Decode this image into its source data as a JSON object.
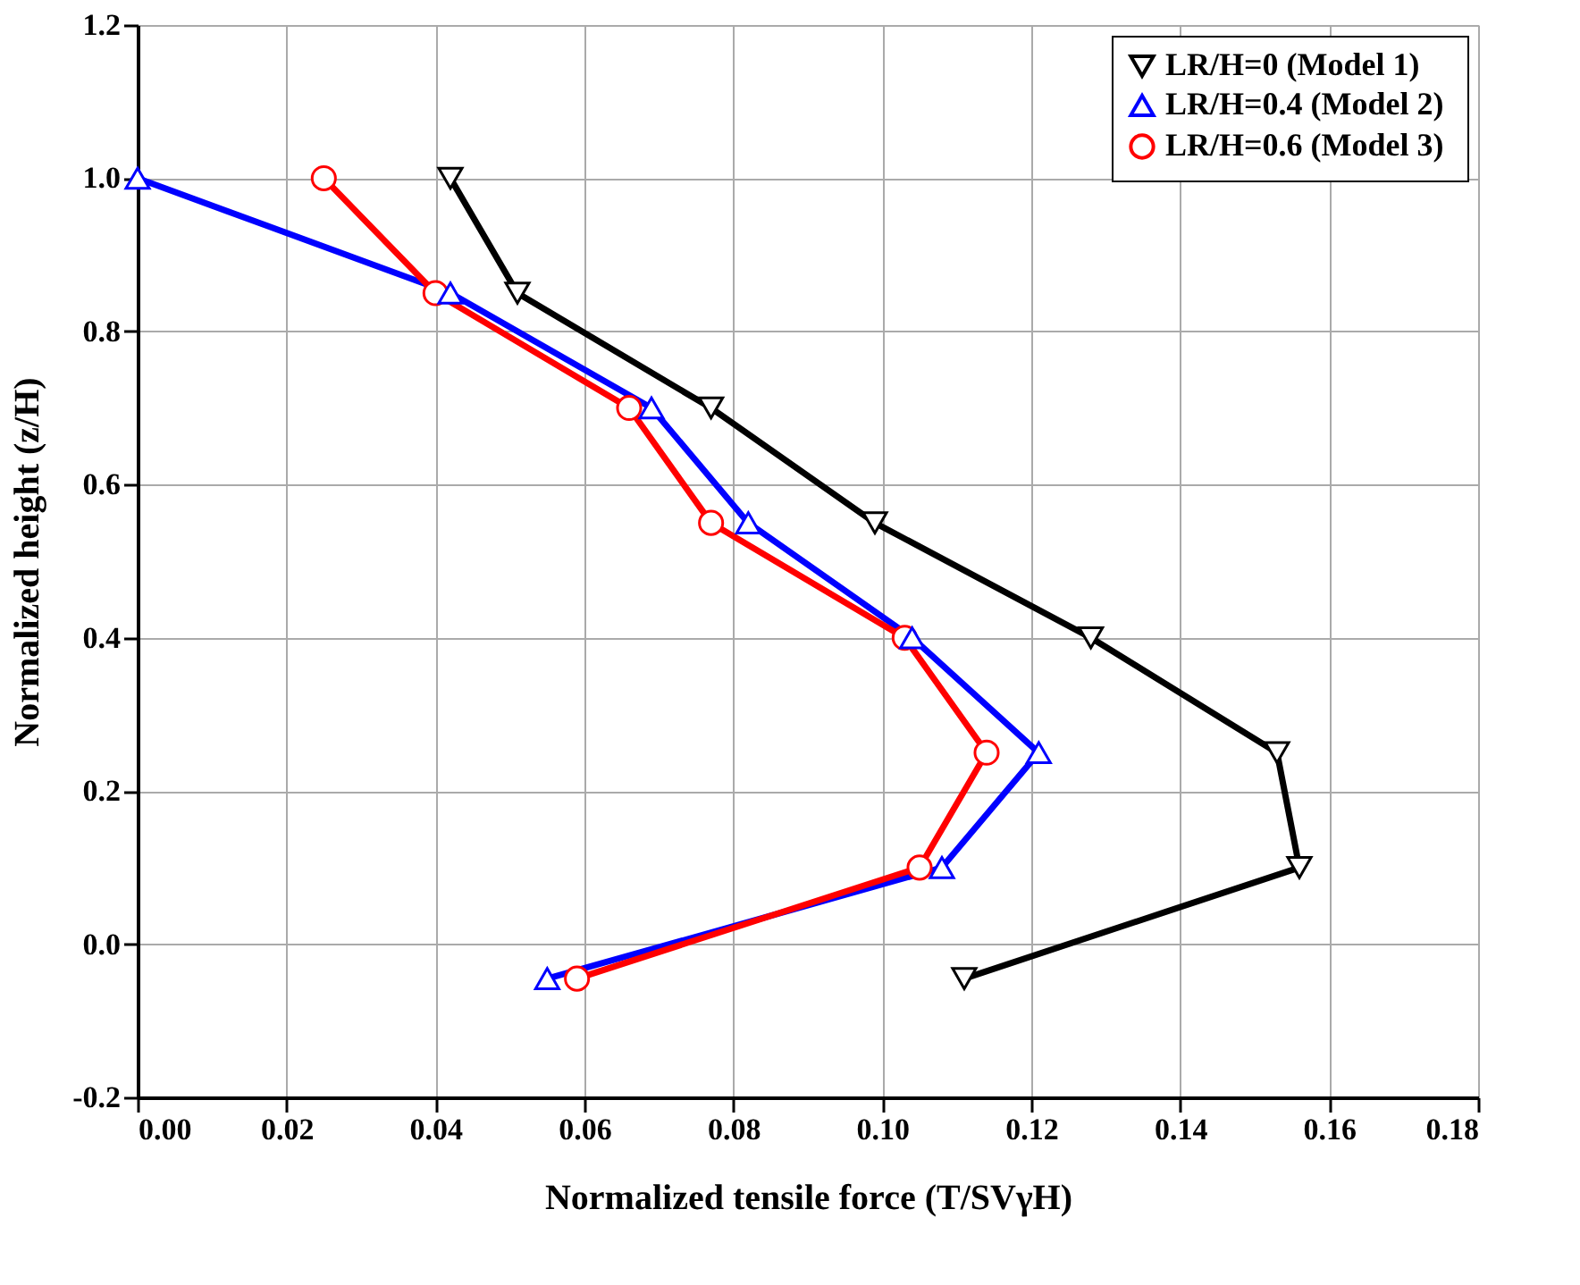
{
  "chart_data": {
    "type": "line",
    "xlabel": "Normalized tensile force (T/SVγH)",
    "ylabel": "Normalized height (z/H)",
    "xlim": [
      0,
      0.18
    ],
    "xticks": [
      {
        "value": 0,
        "label": "0.00"
      },
      0.02,
      0.04,
      0.06,
      0.08,
      {
        "value": 0.1,
        "label": "0.10"
      },
      0.12,
      0.14,
      0.16,
      0.18
    ],
    "ylim": [
      -0.2,
      1.2
    ],
    "yticks": [
      -0.2,
      {
        "value": 0,
        "label": "0.0"
      },
      0.2,
      0.4,
      0.6,
      0.8,
      {
        "value": 1,
        "label": "1.0"
      },
      1.2
    ],
    "grid": true,
    "legend": "top right",
    "line_style": "solid",
    "series": [
      {
        "name": "LR/H=0     (Model 1)",
        "color": "#000000",
        "marker": "triangle-down",
        "x": [
          0.042,
          0.051,
          0.077,
          0.099,
          0.128,
          0.153,
          0.156,
          0.111
        ],
        "values": [
          1.0,
          0.85,
          0.7,
          0.55,
          0.4,
          0.25,
          0.1,
          -0.045
        ]
      },
      {
        "name": "LR/H=0.4 (Model 2)",
        "color": "#0000ff",
        "marker": "triangle",
        "x": [
          0.0,
          0.042,
          0.069,
          0.082,
          0.104,
          0.121,
          0.108,
          0.055
        ],
        "values": [
          1.0,
          0.85,
          0.7,
          0.55,
          0.4,
          0.25,
          0.1,
          -0.045
        ]
      },
      {
        "name": "LR/H=0.6 (Model 3)",
        "color": "#ff0000",
        "marker": "circle",
        "x": [
          0.025,
          0.04,
          0.066,
          0.077,
          0.103,
          0.114,
          0.105,
          0.059
        ],
        "values": [
          1.0,
          0.85,
          0.7,
          0.55,
          0.4,
          0.25,
          0.1,
          -0.045
        ]
      }
    ]
  }
}
